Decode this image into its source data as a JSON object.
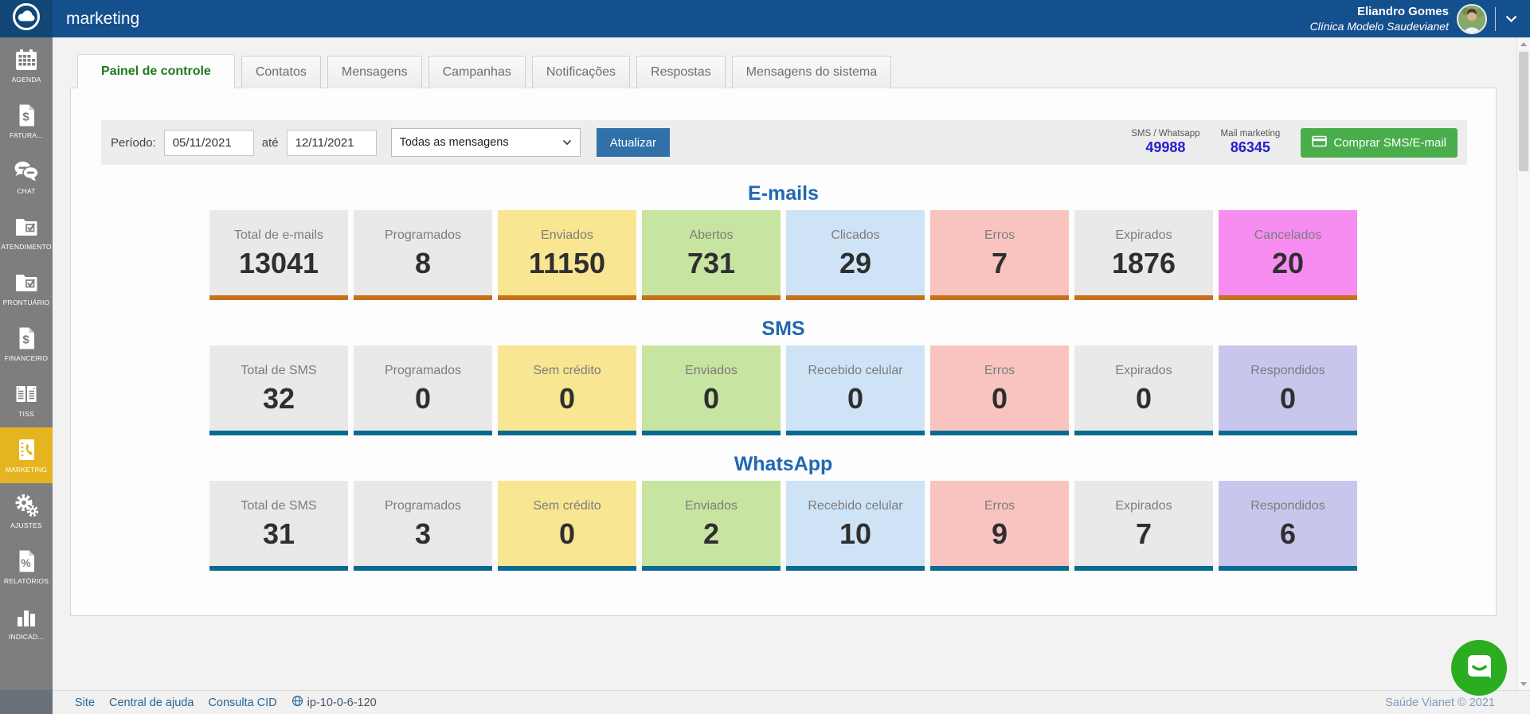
{
  "header": {
    "title": "marketing",
    "user_name": "Eliandro Gomes",
    "user_org": "Clínica Modelo Saudevianet"
  },
  "sidebar": {
    "items": [
      {
        "id": "agenda",
        "label": "AGENDA",
        "icon": "calendar-icon",
        "active": false
      },
      {
        "id": "faturamento",
        "label": "FATURA...",
        "icon": "invoice-icon",
        "active": false
      },
      {
        "id": "chat",
        "label": "CHAT",
        "icon": "chat-bubbles-icon",
        "active": false
      },
      {
        "id": "atendimento",
        "label": "ATENDIMENTO",
        "icon": "folder-check-icon",
        "active": false
      },
      {
        "id": "prontuario",
        "label": "PRONTUÁRIO",
        "icon": "folder-check-icon",
        "active": false
      },
      {
        "id": "financeiro",
        "label": "FINANCEIRO",
        "icon": "invoice-icon",
        "active": false
      },
      {
        "id": "tiss",
        "label": "TISS",
        "icon": "ledger-icon",
        "active": false
      },
      {
        "id": "marketing",
        "label": "MARKETING",
        "icon": "phonebook-icon",
        "active": true
      },
      {
        "id": "ajustes",
        "label": "AJUSTES",
        "icon": "gears-icon",
        "active": false
      },
      {
        "id": "relatorios",
        "label": "RELATÓRIOS",
        "icon": "percent-doc-icon",
        "active": false
      },
      {
        "id": "indicadores",
        "label": "INDICAD...",
        "icon": "bar-chart-icon",
        "active": false
      }
    ]
  },
  "tabs": [
    {
      "label": "Painel de controle",
      "active": true
    },
    {
      "label": "Contatos",
      "active": false
    },
    {
      "label": "Mensagens",
      "active": false
    },
    {
      "label": "Campanhas",
      "active": false
    },
    {
      "label": "Notificações",
      "active": false
    },
    {
      "label": "Respostas",
      "active": false
    },
    {
      "label": "Mensagens do sistema",
      "active": false
    }
  ],
  "filters": {
    "period_label": "Período:",
    "date_from": "05/11/2021",
    "until_label": "até",
    "date_to": "12/11/2021",
    "message_filter": "Todas as mensagens",
    "update_button": "Atualizar",
    "credits": [
      {
        "label": "SMS / Whatsapp",
        "value": "49988"
      },
      {
        "label": "Mail marketing",
        "value": "86345"
      }
    ],
    "buy_button": "Comprar SMS/E-mail"
  },
  "sections": [
    {
      "title": "E-mails",
      "accent": "accent_orange",
      "cards": [
        {
          "label": "Total de e-mails",
          "value": "13041",
          "color": "card_gray"
        },
        {
          "label": "Programados",
          "value": "8",
          "color": "card_gray"
        },
        {
          "label": "Enviados",
          "value": "11150",
          "color": "card_yellow"
        },
        {
          "label": "Abertos",
          "value": "731",
          "color": "card_green"
        },
        {
          "label": "Clicados",
          "value": "29",
          "color": "card_blue"
        },
        {
          "label": "Erros",
          "value": "7",
          "color": "card_pink"
        },
        {
          "label": "Expirados",
          "value": "1876",
          "color": "card_gray"
        },
        {
          "label": "Cancelados",
          "value": "20",
          "color": "card_magenta"
        }
      ]
    },
    {
      "title": "SMS",
      "accent": "accent_blue",
      "cards": [
        {
          "label": "Total de SMS",
          "value": "32",
          "color": "card_gray"
        },
        {
          "label": "Programados",
          "value": "0",
          "color": "card_gray"
        },
        {
          "label": "Sem crédito",
          "value": "0",
          "color": "card_yellow"
        },
        {
          "label": "Enviados",
          "value": "0",
          "color": "card_green"
        },
        {
          "label": "Recebido celular",
          "value": "0",
          "color": "card_blue"
        },
        {
          "label": "Erros",
          "value": "0",
          "color": "card_pink"
        },
        {
          "label": "Expirados",
          "value": "0",
          "color": "card_gray"
        },
        {
          "label": "Respondidos",
          "value": "0",
          "color": "card_lavender"
        }
      ]
    },
    {
      "title": "WhatsApp",
      "accent": "accent_blue",
      "cards": [
        {
          "label": "Total de SMS",
          "value": "31",
          "color": "card_gray"
        },
        {
          "label": "Programados",
          "value": "3",
          "color": "card_gray"
        },
        {
          "label": "Sem crédito",
          "value": "0",
          "color": "card_yellow"
        },
        {
          "label": "Enviados",
          "value": "2",
          "color": "card_green"
        },
        {
          "label": "Recebido celular",
          "value": "10",
          "color": "card_blue"
        },
        {
          "label": "Erros",
          "value": "9",
          "color": "card_pink"
        },
        {
          "label": "Expirados",
          "value": "7",
          "color": "card_gray"
        },
        {
          "label": "Respondidos",
          "value": "6",
          "color": "card_lavender"
        }
      ]
    }
  ],
  "footer": {
    "links": [
      "Site",
      "Central de ajuda",
      "Consulta CID"
    ],
    "server": "ip-10-0-6-120",
    "copyright": "Saúde Vianet © 2021"
  },
  "colors": {
    "topbar_blue": "#15508e",
    "sidebar_gray": "#7e7e7e",
    "active_item_yellow": "#e6b41e",
    "active_tab_green": "#1e7a1e",
    "section_title_blue": "#2068b0",
    "update_button_blue": "#3071a9",
    "buy_button_green": "#4aad4c",
    "credit_value_blue": "#2520c9",
    "link_blue": "#2a6496",
    "chat_green": "#2aad21",
    "accent_orange": "#c8701a",
    "accent_blue": "#096b90",
    "card_gray": "#e9e9e9",
    "card_yellow": "#f8e692",
    "card_green": "#c7e4a1",
    "card_blue": "#cfe3f6",
    "card_pink": "#f9c4c0",
    "card_magenta": "#f78df1",
    "card_lavender": "#c9c6ee"
  }
}
